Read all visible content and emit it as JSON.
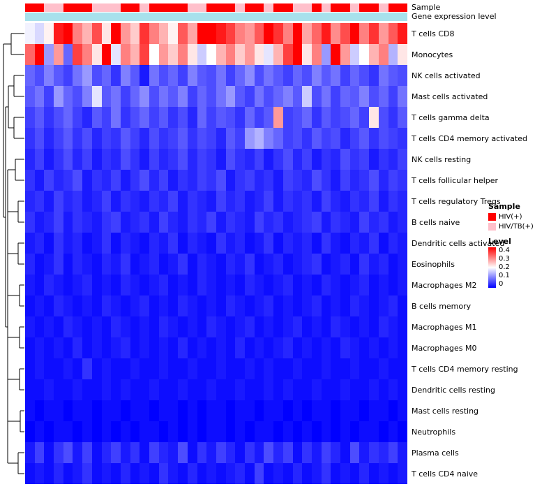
{
  "annotations": {
    "sample_label": "Sample",
    "gene_expression_label": "Gene expression level",
    "gene_expression_color": "#A8E1EC"
  },
  "legend": {
    "sample": {
      "title": "Sample",
      "items": [
        {
          "label": "HIV(+)",
          "color": "#FF0000"
        },
        {
          "label": "HIV/TB(+)",
          "color": "#FFC0CB"
        }
      ]
    },
    "level": {
      "title": "Level",
      "ticks": [
        "0.4",
        "0.3",
        "0.2",
        "0.1",
        "0"
      ],
      "max_color": "#FF0000",
      "mid_color": "#FFFFFF",
      "min_color": "#0000FF"
    }
  },
  "chart_data": {
    "type": "heatmap",
    "title": "",
    "colorscale": {
      "min": 0,
      "mid": 0.2,
      "max": 0.4,
      "min_color": "#0000FF",
      "mid_color": "#FFFFFF",
      "max_color": "#FF0000"
    },
    "n_columns": 40,
    "column_groups": [
      "HIV(+)",
      "HIV(+)",
      "HIV/TB(+)",
      "HIV/TB(+)",
      "HIV(+)",
      "HIV(+)",
      "HIV(+)",
      "HIV/TB(+)",
      "HIV/TB(+)",
      "HIV/TB(+)",
      "HIV(+)",
      "HIV(+)",
      "HIV/TB(+)",
      "HIV(+)",
      "HIV(+)",
      "HIV(+)",
      "HIV(+)",
      "HIV/TB(+)",
      "HIV/TB(+)",
      "HIV(+)",
      "HIV(+)",
      "HIV(+)",
      "HIV/TB(+)",
      "HIV(+)",
      "HIV(+)",
      "HIV/TB(+)",
      "HIV(+)",
      "HIV(+)",
      "HIV/TB(+)",
      "HIV/TB(+)",
      "HIV(+)",
      "HIV/TB(+)",
      "HIV(+)",
      "HIV(+)",
      "HIV/TB(+)",
      "HIV(+)",
      "HIV(+)",
      "HIV/TB(+)",
      "HIV(+)",
      "HIV(+)"
    ],
    "rows": [
      "T cells CD8",
      "Monocytes",
      "NK cells activated",
      "Mast cells activated",
      "T cells gamma delta",
      "T cells CD4 memory activated",
      "NK cells resting",
      "T cells follicular helper",
      "T cells regulatory  Tregs",
      "B cells naive",
      "Dendritic cells activated",
      "Eosinophils",
      "Macrophages M2",
      "B cells memory",
      "Macrophages M1",
      "Macrophages M0",
      "T cells CD4 memory resting",
      "Dendritic cells resting",
      "Mast cells resting",
      "Neutrophils",
      "Plasma cells",
      "T cells CD4 naive"
    ],
    "matrix": [
      [
        0.19,
        0.17,
        0.21,
        0.38,
        0.42,
        0.3,
        0.26,
        0.34,
        0.22,
        0.4,
        0.28,
        0.24,
        0.36,
        0.3,
        0.26,
        0.21,
        0.33,
        0.27,
        0.45,
        0.42,
        0.38,
        0.35,
        0.3,
        0.28,
        0.33,
        0.44,
        0.36,
        0.3,
        0.4,
        0.27,
        0.32,
        0.38,
        0.29,
        0.34,
        0.42,
        0.3,
        0.36,
        0.28,
        0.33,
        0.38
      ],
      [
        0.32,
        0.42,
        0.12,
        0.28,
        0.08,
        0.35,
        0.3,
        0.22,
        0.4,
        0.18,
        0.3,
        0.26,
        0.35,
        0.2,
        0.28,
        0.24,
        0.3,
        0.22,
        0.16,
        0.2,
        0.26,
        0.3,
        0.24,
        0.28,
        0.22,
        0.18,
        0.26,
        0.35,
        0.42,
        0.22,
        0.3,
        0.12,
        0.45,
        0.28,
        0.16,
        0.2,
        0.26,
        0.3,
        0.14,
        0.22
      ],
      [
        0.08,
        0.06,
        0.1,
        0.07,
        0.05,
        0.09,
        0.12,
        0.06,
        0.08,
        0.04,
        0.1,
        0.07,
        0.02,
        0.09,
        0.06,
        0.08,
        0.05,
        0.1,
        0.07,
        0.06,
        0.09,
        0.05,
        0.08,
        0.11,
        0.06,
        0.09,
        0.07,
        0.05,
        0.08,
        0.06,
        0.1,
        0.07,
        0.09,
        0.05,
        0.08,
        0.06,
        0.04,
        0.09,
        0.07,
        0.06
      ],
      [
        0.07,
        0.09,
        0.05,
        0.12,
        0.08,
        0.06,
        0.1,
        0.18,
        0.07,
        0.09,
        0.05,
        0.08,
        0.11,
        0.06,
        0.09,
        0.07,
        0.1,
        0.05,
        0.08,
        0.06,
        0.09,
        0.12,
        0.07,
        0.05,
        0.09,
        0.06,
        0.08,
        0.1,
        0.07,
        0.16,
        0.06,
        0.09,
        0.05,
        0.08,
        0.07,
        0.1,
        0.06,
        0.08,
        0.05,
        0.09
      ],
      [
        0.05,
        0.07,
        0.04,
        0.06,
        0.08,
        0.05,
        0.03,
        0.07,
        0.05,
        0.09,
        0.04,
        0.06,
        0.08,
        0.05,
        0.07,
        0.04,
        0.06,
        0.03,
        0.08,
        0.05,
        0.07,
        0.06,
        0.04,
        0.08,
        0.05,
        0.07,
        0.28,
        0.05,
        0.06,
        0.08,
        0.04,
        0.07,
        0.05,
        0.06,
        0.08,
        0.05,
        0.22,
        0.06,
        0.04,
        0.07
      ],
      [
        0.04,
        0.06,
        0.03,
        0.05,
        0.07,
        0.04,
        0.06,
        0.03,
        0.05,
        0.04,
        0.07,
        0.05,
        0.03,
        0.06,
        0.04,
        0.05,
        0.07,
        0.04,
        0.06,
        0.05,
        0.03,
        0.07,
        0.05,
        0.12,
        0.14,
        0.1,
        0.08,
        0.05,
        0.06,
        0.04,
        0.07,
        0.05,
        0.06,
        0.03,
        0.05,
        0.07,
        0.04,
        0.06,
        0.05,
        0.04
      ],
      [
        0.03,
        0.05,
        0.02,
        0.04,
        0.06,
        0.03,
        0.05,
        0.02,
        0.04,
        0.03,
        0.06,
        0.04,
        0.02,
        0.05,
        0.03,
        0.04,
        0.06,
        0.03,
        0.05,
        0.04,
        0.02,
        0.06,
        0.04,
        0.03,
        0.05,
        0.02,
        0.04,
        0.06,
        0.03,
        0.05,
        0.02,
        0.04,
        0.03,
        0.06,
        0.04,
        0.05,
        0.02,
        0.04,
        0.03,
        0.05
      ],
      [
        0.04,
        0.02,
        0.05,
        0.03,
        0.04,
        0.06,
        0.02,
        0.04,
        0.03,
        0.05,
        0.02,
        0.04,
        0.06,
        0.03,
        0.05,
        0.02,
        0.04,
        0.03,
        0.05,
        0.04,
        0.06,
        0.02,
        0.04,
        0.05,
        0.03,
        0.04,
        0.02,
        0.05,
        0.04,
        0.03,
        0.06,
        0.04,
        0.02,
        0.05,
        0.03,
        0.04,
        0.06,
        0.03,
        0.05,
        0.04
      ],
      [
        0.03,
        0.04,
        0.02,
        0.05,
        0.03,
        0.04,
        0.02,
        0.03,
        0.05,
        0.02,
        0.04,
        0.03,
        0.02,
        0.04,
        0.03,
        0.05,
        0.02,
        0.04,
        0.03,
        0.02,
        0.05,
        0.03,
        0.04,
        0.02,
        0.03,
        0.05,
        0.02,
        0.04,
        0.03,
        0.04,
        0.02,
        0.05,
        0.03,
        0.02,
        0.04,
        0.03,
        0.05,
        0.02,
        0.04,
        0.03
      ],
      [
        0.04,
        0.02,
        0.03,
        0.05,
        0.02,
        0.04,
        0.03,
        0.02,
        0.04,
        0.05,
        0.02,
        0.03,
        0.04,
        0.02,
        0.05,
        0.03,
        0.02,
        0.04,
        0.03,
        0.05,
        0.02,
        0.04,
        0.03,
        0.02,
        0.05,
        0.03,
        0.04,
        0.02,
        0.03,
        0.04,
        0.05,
        0.02,
        0.04,
        0.03,
        0.02,
        0.05,
        0.03,
        0.04,
        0.02,
        0.03
      ],
      [
        0.02,
        0.03,
        0.01,
        0.04,
        0.02,
        0.03,
        0.01,
        0.02,
        0.04,
        0.01,
        0.03,
        0.02,
        0.01,
        0.03,
        0.02,
        0.04,
        0.01,
        0.03,
        0.02,
        0.01,
        0.04,
        0.02,
        0.03,
        0.01,
        0.02,
        0.04,
        0.01,
        0.03,
        0.02,
        0.03,
        0.01,
        0.04,
        0.02,
        0.01,
        0.03,
        0.02,
        0.04,
        0.01,
        0.03,
        0.02
      ],
      [
        0.03,
        0.01,
        0.02,
        0.04,
        0.01,
        0.03,
        0.02,
        0.01,
        0.03,
        0.02,
        0.04,
        0.01,
        0.02,
        0.03,
        0.01,
        0.02,
        0.04,
        0.01,
        0.03,
        0.02,
        0.01,
        0.03,
        0.02,
        0.04,
        0.01,
        0.02,
        0.03,
        0.01,
        0.02,
        0.03,
        0.04,
        0.01,
        0.02,
        0.03,
        0.01,
        0.04,
        0.02,
        0.03,
        0.01,
        0.02
      ],
      [
        0.02,
        0.01,
        0.03,
        0.02,
        0.01,
        0.02,
        0.03,
        0.01,
        0.02,
        0.01,
        0.03,
        0.02,
        0.01,
        0.02,
        0.03,
        0.01,
        0.02,
        0.01,
        0.03,
        0.02,
        0.01,
        0.02,
        0.01,
        0.03,
        0.02,
        0.01,
        0.02,
        0.03,
        0.01,
        0.02,
        0.01,
        0.03,
        0.02,
        0.01,
        0.02,
        0.03,
        0.01,
        0.02,
        0.01,
        0.02
      ],
      [
        0.01,
        0.02,
        0.01,
        0.03,
        0.02,
        0.01,
        0.02,
        0.01,
        0.03,
        0.02,
        0.01,
        0.02,
        0.03,
        0.01,
        0.02,
        0.01,
        0.03,
        0.02,
        0.01,
        0.02,
        0.01,
        0.03,
        0.02,
        0.01,
        0.02,
        0.03,
        0.01,
        0.02,
        0.01,
        0.02,
        0.03,
        0.01,
        0.02,
        0.01,
        0.03,
        0.02,
        0.01,
        0.02,
        0.03,
        0.01
      ],
      [
        0.02,
        0.01,
        0.02,
        0.01,
        0.03,
        0.02,
        0.01,
        0.02,
        0.01,
        0.03,
        0.02,
        0.01,
        0.02,
        0.01,
        0.03,
        0.02,
        0.01,
        0.02,
        0.01,
        0.03,
        0.02,
        0.01,
        0.02,
        0.03,
        0.01,
        0.02,
        0.01,
        0.02,
        0.03,
        0.01,
        0.02,
        0.01,
        0.03,
        0.02,
        0.01,
        0.02,
        0.01,
        0.03,
        0.02,
        0.01
      ],
      [
        0.01,
        0.02,
        0.01,
        0.02,
        0.01,
        0.03,
        0.01,
        0.02,
        0.01,
        0.02,
        0.03,
        0.01,
        0.02,
        0.01,
        0.02,
        0.01,
        0.03,
        0.01,
        0.02,
        0.01,
        0.02,
        0.01,
        0.03,
        0.01,
        0.02,
        0.01,
        0.02,
        0.03,
        0.01,
        0.02,
        0.01,
        0.02,
        0.01,
        0.03,
        0.02,
        0.01,
        0.02,
        0.01,
        0.02,
        0.01
      ],
      [
        0.01,
        0.02,
        0.01,
        0.01,
        0.02,
        0.01,
        0.04,
        0.01,
        0.02,
        0.01,
        0.01,
        0.02,
        0.01,
        0.01,
        0.02,
        0.01,
        0.01,
        0.02,
        0.01,
        0.01,
        0.02,
        0.01,
        0.01,
        0.02,
        0.01,
        0.02,
        0.01,
        0.01,
        0.02,
        0.01,
        0.01,
        0.02,
        0.01,
        0.01,
        0.02,
        0.01,
        0.01,
        0.02,
        0.01,
        0.01
      ],
      [
        0.01,
        0.01,
        0.02,
        0.01,
        0.01,
        0.02,
        0.01,
        0.01,
        0.02,
        0.01,
        0.02,
        0.01,
        0.01,
        0.02,
        0.01,
        0.01,
        0.02,
        0.01,
        0.01,
        0.02,
        0.01,
        0.01,
        0.02,
        0.01,
        0.01,
        0.02,
        0.01,
        0.02,
        0.01,
        0.01,
        0.02,
        0.01,
        0.01,
        0.02,
        0.01,
        0.01,
        0.02,
        0.01,
        0.02,
        0.01
      ],
      [
        0.01,
        0.0,
        0.01,
        0.01,
        0.0,
        0.01,
        0.01,
        0.0,
        0.01,
        0.01,
        0.0,
        0.01,
        0.01,
        0.0,
        0.01,
        0.01,
        0.0,
        0.01,
        0.0,
        0.01,
        0.01,
        0.0,
        0.01,
        0.01,
        0.0,
        0.01,
        0.01,
        0.0,
        0.01,
        0.0,
        0.01,
        0.01,
        0.0,
        0.01,
        0.01,
        0.0,
        0.01,
        0.01,
        0.0,
        0.01
      ],
      [
        0.0,
        0.01,
        0.0,
        0.01,
        0.01,
        0.0,
        0.01,
        0.0,
        0.01,
        0.0,
        0.01,
        0.0,
        0.01,
        0.01,
        0.0,
        0.01,
        0.0,
        0.01,
        0.0,
        0.01,
        0.01,
        0.0,
        0.01,
        0.0,
        0.01,
        0.01,
        0.0,
        0.01,
        0.0,
        0.01,
        0.0,
        0.01,
        0.0,
        0.01,
        0.0,
        0.01,
        0.01,
        0.0,
        0.01,
        0.0
      ],
      [
        0.02,
        0.05,
        0.01,
        0.04,
        0.06,
        0.02,
        0.05,
        0.01,
        0.03,
        0.05,
        0.02,
        0.04,
        0.01,
        0.05,
        0.03,
        0.02,
        0.06,
        0.01,
        0.04,
        0.02,
        0.05,
        0.03,
        0.01,
        0.04,
        0.02,
        0.06,
        0.03,
        0.05,
        0.01,
        0.04,
        0.02,
        0.05,
        0.03,
        0.01,
        0.06,
        0.02,
        0.04,
        0.03,
        0.05,
        0.02
      ],
      [
        0.01,
        0.02,
        0.01,
        0.03,
        0.01,
        0.02,
        0.04,
        0.01,
        0.02,
        0.01,
        0.03,
        0.01,
        0.02,
        0.01,
        0.04,
        0.02,
        0.01,
        0.03,
        0.01,
        0.02,
        0.01,
        0.02,
        0.03,
        0.01,
        0.05,
        0.01,
        0.02,
        0.01,
        0.03,
        0.01,
        0.02,
        0.04,
        0.01,
        0.02,
        0.01,
        0.03,
        0.01,
        0.02,
        0.01,
        0.02
      ]
    ]
  }
}
